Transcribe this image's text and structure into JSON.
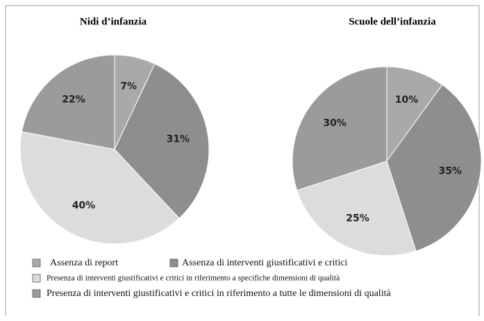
{
  "chart_data": [
    {
      "type": "pie",
      "title": "Nidi d’infanzia",
      "categories": [
        "Assenza di report",
        "Assenza di interventi giustificativi e critici",
        "Presenza di interventi giustificativi e critici in riferimento a specifiche dimensioni di qualità",
        "Presenza di interventi giustificativi e critici in riferimento a tutte le dimensioni di qualità"
      ],
      "values": [
        7,
        31,
        40,
        22
      ],
      "value_labels": [
        "7%",
        "31%",
        "40%",
        "22%"
      ],
      "colors": [
        "#a9a9a9",
        "#8e8e8e",
        "#dcdcdc",
        "#9b9b9b"
      ]
    },
    {
      "type": "pie",
      "title": "Scuole dell’infanzia",
      "categories": [
        "Assenza di report",
        "Assenza di interventi giustificativi e critici",
        "Presenza di interventi giustificativi e critici in riferimento a specifiche dimensioni di qualità",
        "Presenza di interventi giustificativi e critici in riferimento a tutte le dimensioni di qualità"
      ],
      "values": [
        10,
        35,
        25,
        30
      ],
      "value_labels": [
        "10%",
        "35%",
        "25%",
        "30%"
      ],
      "colors": [
        "#a9a9a9",
        "#8e8e8e",
        "#dcdcdc",
        "#9b9b9b"
      ]
    }
  ]
}
